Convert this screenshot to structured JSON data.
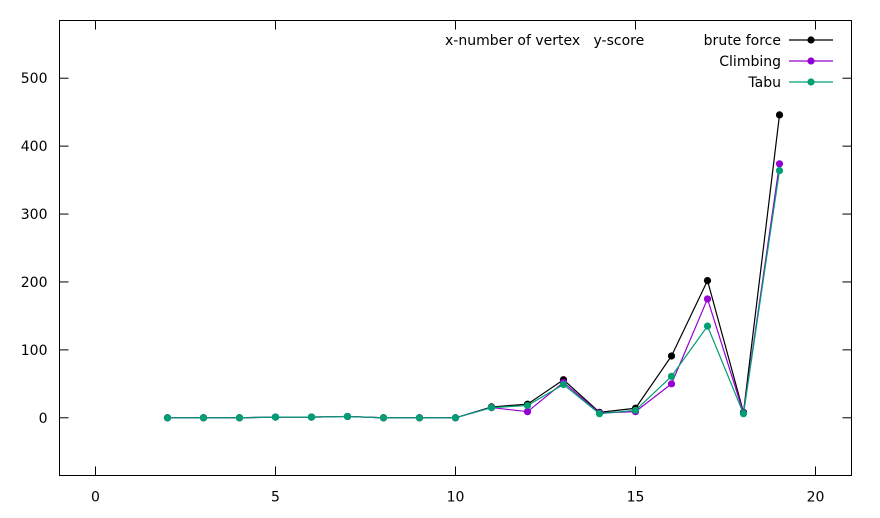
{
  "chart_data": {
    "type": "line",
    "title": "",
    "xlabel": "",
    "ylabel": "",
    "annotation": "x-number of vertex   y-score",
    "xlim": [
      -1,
      21
    ],
    "ylim": [
      -85,
      585
    ],
    "xticks": [
      0,
      5,
      10,
      15,
      20
    ],
    "yticks": [
      0,
      100,
      200,
      300,
      400,
      500
    ],
    "grid": false,
    "legend_position": "top-right",
    "x": [
      2,
      3,
      4,
      5,
      6,
      7,
      8,
      9,
      10,
      11,
      12,
      13,
      14,
      15,
      16,
      17,
      18,
      19
    ],
    "series": [
      {
        "name": "brute force",
        "color": "#000000",
        "values": [
          0,
          0,
          0,
          1,
          1,
          2,
          0,
          0,
          0,
          16,
          20,
          56,
          8,
          14,
          91,
          202,
          8,
          446
        ]
      },
      {
        "name": "Climbing",
        "color": "#9400d3",
        "values": [
          0,
          0,
          0,
          1,
          1,
          2,
          0,
          0,
          0,
          15,
          9,
          52,
          7,
          9,
          50,
          175,
          7,
          374
        ]
      },
      {
        "name": "Tabu",
        "color": "#009e73",
        "values": [
          0,
          0,
          0,
          1,
          1,
          2,
          0,
          0,
          0,
          15,
          18,
          49,
          6,
          11,
          61,
          135,
          6,
          364
        ]
      }
    ]
  }
}
